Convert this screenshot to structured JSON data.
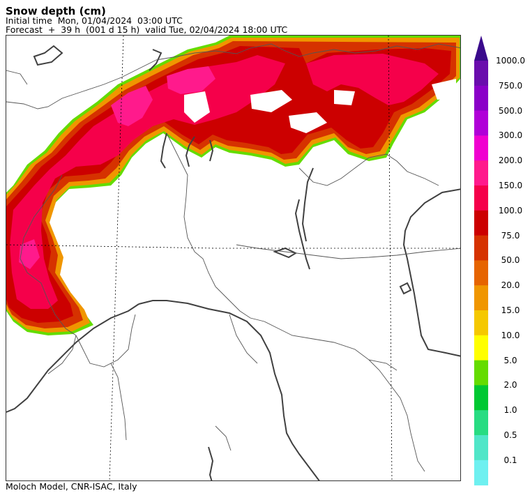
{
  "header": {
    "title": "Snow depth (cm)",
    "initial_time": "Initial time  Mon, 01/04/2024  03:00 UTC",
    "forecast": "Forecast  +  39 h  (001 d 15 h)  valid Tue, 02/04/2024 18:00 UTC"
  },
  "footer": {
    "credit": "Moloch Model, CNR-ISAC, Italy"
  },
  "legend": {
    "arrow_color": "#3a0a8c",
    "levels": [
      {
        "label": "1000.0",
        "color": "#6a0dad"
      },
      {
        "label": "750.0",
        "color": "#8a00c8"
      },
      {
        "label": "500.0",
        "color": "#b000d8"
      },
      {
        "label": "300.0",
        "color": "#f000d0"
      },
      {
        "label": "200.0",
        "color": "#ff1a8c"
      },
      {
        "label": "150.0",
        "color": "#f5004a"
      },
      {
        "label": "100.0",
        "color": "#cc0000"
      },
      {
        "label": "75.0",
        "color": "#d63200"
      },
      {
        "label": "50.0",
        "color": "#e66400"
      },
      {
        "label": "20.0",
        "color": "#f09600"
      },
      {
        "label": "15.0",
        "color": "#f5c800"
      },
      {
        "label": "10.0",
        "color": "#ffff00"
      },
      {
        "label": "5.0",
        "color": "#64dc00"
      },
      {
        "label": "2.0",
        "color": "#00c832"
      },
      {
        "label": "1.0",
        "color": "#28dc82"
      },
      {
        "label": "0.5",
        "color": "#50e6c8"
      },
      {
        "label": "0.1",
        "color": "#6ef0f0"
      }
    ]
  },
  "map": {
    "snow_colors": {
      "low": "#f09600",
      "mid": "#d63200",
      "high": "#cc0000",
      "peak": "#f5004a",
      "top": "#ff1a8c",
      "edge": "#64dc00"
    }
  }
}
